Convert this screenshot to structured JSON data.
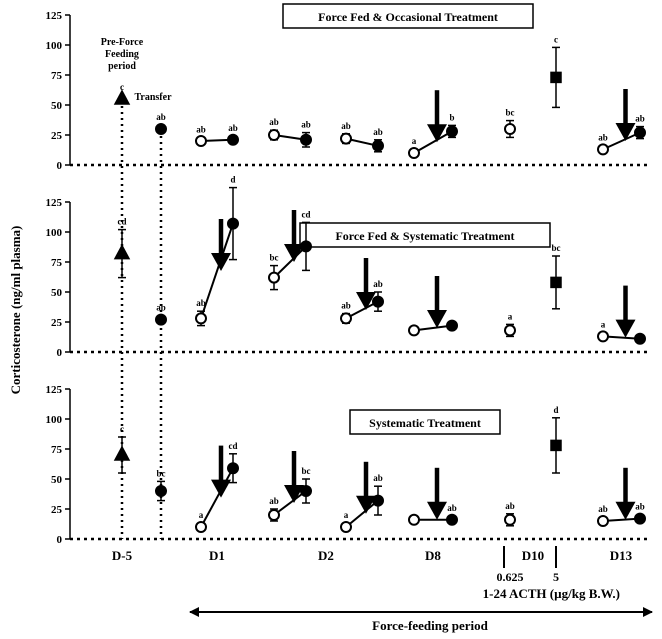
{
  "chart_data": {
    "type": "scatter",
    "ylabel": "Corticosterone (ng/ml plasma)",
    "yticks": [
      0,
      25,
      50,
      75,
      100,
      125
    ],
    "ylim": [
      0,
      125
    ],
    "grid": false,
    "columns": [
      {
        "key": "D-5",
        "label": "D-5"
      },
      {
        "key": "D1",
        "label": "D1"
      },
      {
        "key": "D2",
        "label": "D2"
      },
      {
        "key": "D8",
        "label": "D8"
      },
      {
        "key": "D10",
        "label": "D10"
      },
      {
        "key": "D13",
        "label": "D13"
      }
    ],
    "acth_doses": [
      "0.625",
      "5"
    ],
    "acth_label": "1-24 ACTH (µg/kg B.W.)",
    "period_label": "Force-feeding period",
    "top_annotations": {
      "pre": "Pre-Force Feeding period",
      "transfer": "Transfer"
    },
    "panels": [
      {
        "title": "Force Fed & Occasional Treatment",
        "points": [
          {
            "x": "D-5",
            "y": 55,
            "shape": "triangle",
            "fill": "black",
            "label": "c"
          },
          {
            "x": "Transfer",
            "y": 30,
            "shape": "circle",
            "fill": "black",
            "label": "ab"
          },
          {
            "x": "D1 pre",
            "y": 20,
            "shape": "circle",
            "fill": "white",
            "err": 3,
            "label": "ab"
          },
          {
            "x": "D1 post",
            "y": 21,
            "shape": "circle",
            "fill": "black",
            "err": 3,
            "label": "ab"
          },
          {
            "x": "D2a pre",
            "y": 25,
            "shape": "circle",
            "fill": "white",
            "err": 4,
            "label": "ab"
          },
          {
            "x": "D2a post",
            "y": 21,
            "shape": "circle",
            "fill": "black",
            "err": 6,
            "label": "ab"
          },
          {
            "x": "D2b pre",
            "y": 22,
            "shape": "circle",
            "fill": "white",
            "err": 4,
            "label": "ab"
          },
          {
            "x": "D2b post",
            "y": 16,
            "shape": "circle",
            "fill": "black",
            "err": 5,
            "label": "ab"
          },
          {
            "x": "D8 pre",
            "y": 10,
            "shape": "circle",
            "fill": "white",
            "label": "a"
          },
          {
            "x": "D8 post",
            "y": 28,
            "shape": "circle",
            "fill": "black",
            "err": 5,
            "label": "b"
          },
          {
            "x": "D10 0.625",
            "y": 30,
            "shape": "circle",
            "fill": "white",
            "err": 7,
            "label": "bc"
          },
          {
            "x": "D10 5",
            "y": 73,
            "shape": "square",
            "fill": "black",
            "err": 25,
            "label": "c"
          },
          {
            "x": "D13 pre",
            "y": 13,
            "shape": "circle",
            "fill": "white",
            "label": "ab"
          },
          {
            "x": "D13 post",
            "y": 27,
            "shape": "circle",
            "fill": "black",
            "err": 5,
            "label": "ab"
          }
        ]
      },
      {
        "title": "Force Fed & Systematic Treatment",
        "points": [
          {
            "x": "D-5",
            "y": 82,
            "shape": "triangle",
            "fill": "black",
            "err": 20,
            "label": "cd"
          },
          {
            "x": "Transfer",
            "y": 27,
            "shape": "circle",
            "fill": "black",
            "label": "ab"
          },
          {
            "x": "D1 pre",
            "y": 28,
            "shape": "circle",
            "fill": "white",
            "err": 6,
            "label": "ab"
          },
          {
            "x": "D1 post",
            "y": 107,
            "shape": "circle",
            "fill": "black",
            "err": 30,
            "label": "d"
          },
          {
            "x": "D2a pre",
            "y": 62,
            "shape": "circle",
            "fill": "white",
            "err": 10,
            "label": "bc"
          },
          {
            "x": "D2a post",
            "y": 88,
            "shape": "circle",
            "fill": "black",
            "err": 20,
            "label": "cd"
          },
          {
            "x": "D2b pre",
            "y": 28,
            "shape": "circle",
            "fill": "white",
            "err": 4,
            "label": "ab"
          },
          {
            "x": "D2b post",
            "y": 42,
            "shape": "circle",
            "fill": "black",
            "err": 8,
            "label": "ab"
          },
          {
            "x": "D8 pre",
            "y": 18,
            "shape": "circle",
            "fill": "white",
            "label": ""
          },
          {
            "x": "D8 post",
            "y": 22,
            "shape": "circle",
            "fill": "black",
            "label": ""
          },
          {
            "x": "D10 0.625",
            "y": 18,
            "shape": "circle",
            "fill": "white",
            "err": 5,
            "label": "a"
          },
          {
            "x": "D10 5",
            "y": 58,
            "shape": "square",
            "fill": "black",
            "err": 22,
            "label": "bc"
          },
          {
            "x": "D13 pre",
            "y": 13,
            "shape": "circle",
            "fill": "white",
            "label": "a"
          },
          {
            "x": "D13 post",
            "y": 11,
            "shape": "circle",
            "fill": "black",
            "label": ""
          }
        ]
      },
      {
        "title": "Systematic Treatment",
        "points": [
          {
            "x": "D-5",
            "y": 70,
            "shape": "triangle",
            "fill": "black",
            "err": 15,
            "label": "c"
          },
          {
            "x": "Transfer",
            "y": 40,
            "shape": "circle",
            "fill": "black",
            "err": 8,
            "label": "bc"
          },
          {
            "x": "D1 pre",
            "y": 10,
            "shape": "circle",
            "fill": "white",
            "label": "a"
          },
          {
            "x": "D1 post",
            "y": 59,
            "shape": "circle",
            "fill": "black",
            "err": 12,
            "label": "cd"
          },
          {
            "x": "D2a pre",
            "y": 20,
            "shape": "circle",
            "fill": "white",
            "err": 5,
            "label": "ab"
          },
          {
            "x": "D2a post",
            "y": 40,
            "shape": "circle",
            "fill": "black",
            "err": 10,
            "label": "bc"
          },
          {
            "x": "D2b pre",
            "y": 10,
            "shape": "circle",
            "fill": "white",
            "label": "a"
          },
          {
            "x": "D2b post",
            "y": 32,
            "shape": "circle",
            "fill": "black",
            "err": 12,
            "label": "ab"
          },
          {
            "x": "D8 pre",
            "y": 16,
            "shape": "circle",
            "fill": "white",
            "label": ""
          },
          {
            "x": "D8 post",
            "y": 16,
            "shape": "circle",
            "fill": "black",
            "label": "ab"
          },
          {
            "x": "D10 0.625",
            "y": 16,
            "shape": "circle",
            "fill": "white",
            "err": 5,
            "label": "ab"
          },
          {
            "x": "D10 5",
            "y": 78,
            "shape": "square",
            "fill": "black",
            "err": 23,
            "label": "d"
          },
          {
            "x": "D13 pre",
            "y": 15,
            "shape": "circle",
            "fill": "white",
            "label": "ab"
          },
          {
            "x": "D13 post",
            "y": 17,
            "shape": "circle",
            "fill": "black",
            "label": "ab"
          }
        ]
      }
    ]
  }
}
